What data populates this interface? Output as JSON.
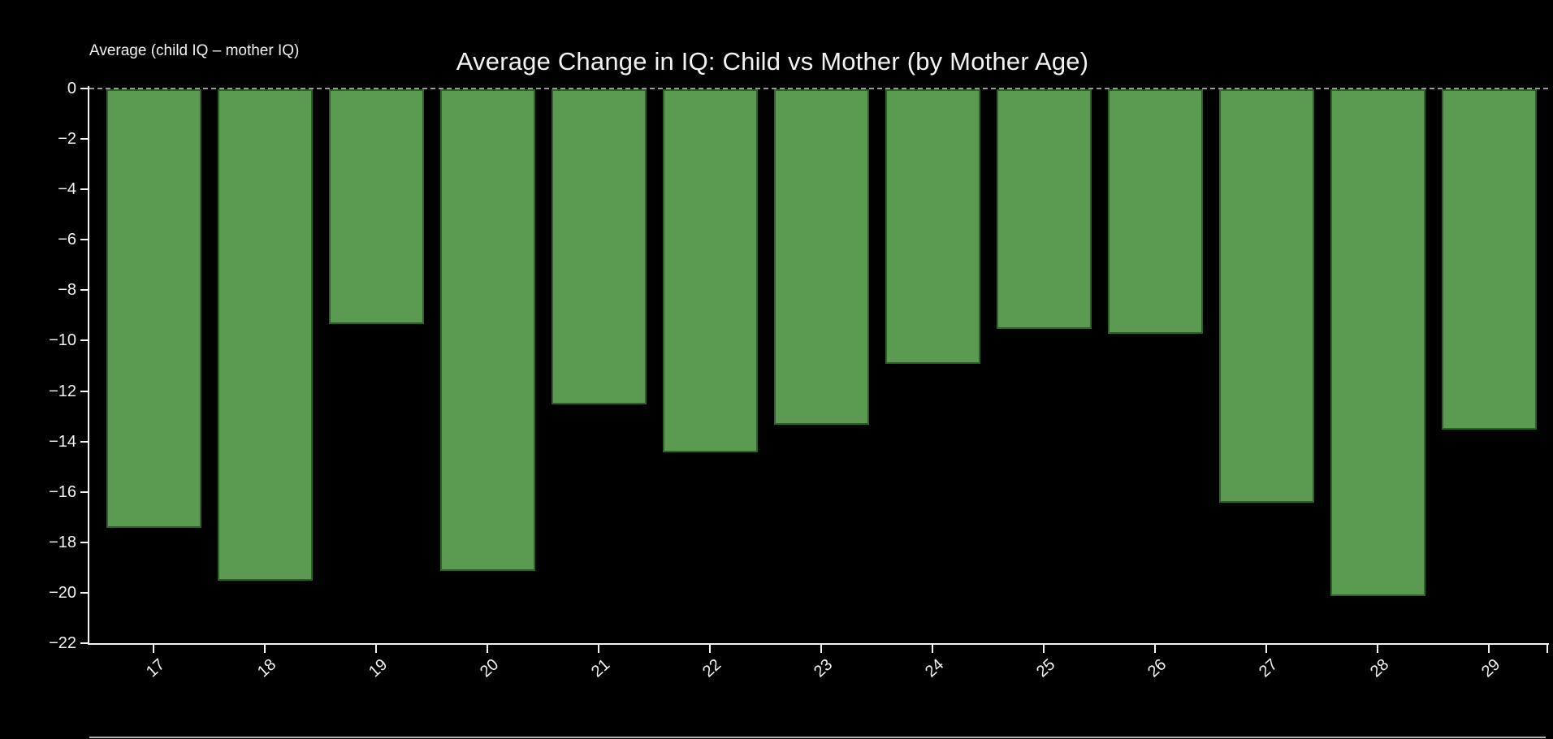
{
  "chart_data": {
    "type": "bar",
    "title": "Average Change in IQ: Child vs Mother (by Mother Age)",
    "ylabel": "Average (child IQ – mother IQ)",
    "xlabel": "",
    "categories": [
      "17",
      "18",
      "19",
      "20",
      "21",
      "22",
      "23",
      "24",
      "25",
      "26",
      "27",
      "28",
      "29"
    ],
    "values": [
      -17.4,
      -19.5,
      -9.3,
      -19.1,
      -12.5,
      -14.4,
      -13.3,
      -10.9,
      -9.5,
      -9.7,
      -16.4,
      -20.1,
      -13.5
    ],
    "series_name": "Average (child IQ - mother IQ)",
    "ylim": [
      -22,
      0
    ],
    "yticks": [
      0,
      -2,
      -4,
      -6,
      -8,
      -10,
      -12,
      -14,
      -16,
      -18,
      -20,
      -22
    ],
    "ytick_labels": [
      "0",
      "−2",
      "−4",
      "−6",
      "−8",
      "−10",
      "−12",
      "−14",
      "−16",
      "−18",
      "−20",
      "−22"
    ],
    "grid": false,
    "zero_line_style": "dashed",
    "legend": "none",
    "colors": {
      "background": "#000000",
      "bar_fill": "#5a9b51",
      "bar_edge": "#2f6029",
      "axis": "#f2f2f2",
      "text": "#f2f2f2",
      "zero_line": "#989898"
    }
  }
}
